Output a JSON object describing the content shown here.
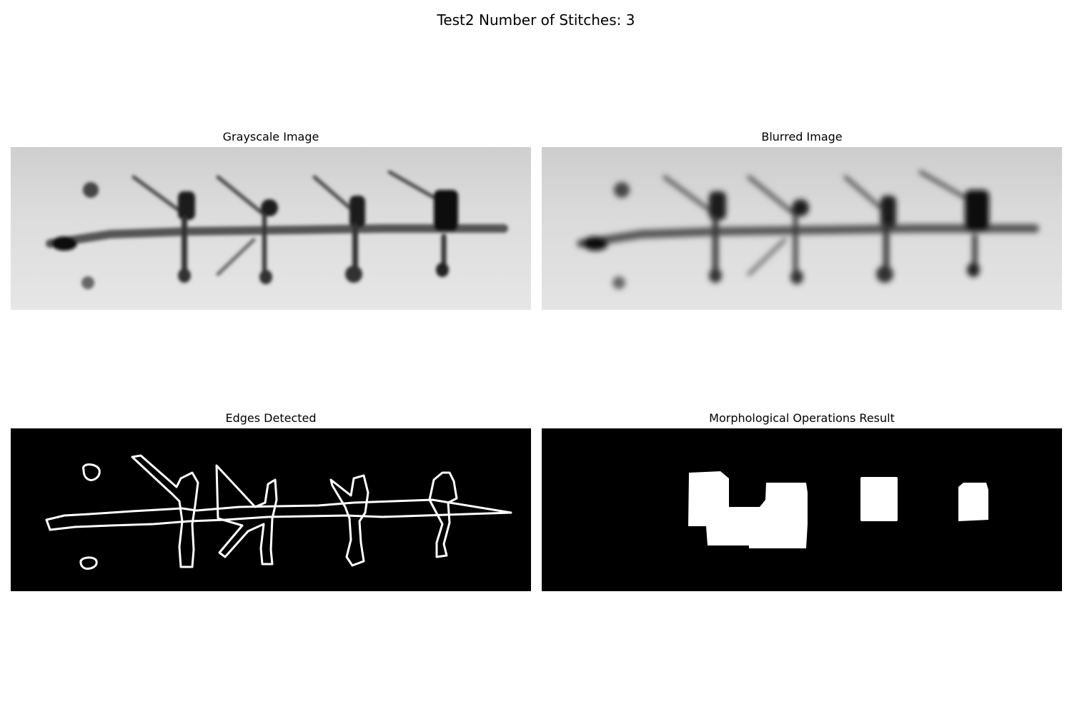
{
  "figure": {
    "suptitle": "Test2 Number of Stitches: 3",
    "panels": [
      {
        "title": "Grayscale Image"
      },
      {
        "title": "Blurred Image"
      },
      {
        "title": "Edges Detected"
      },
      {
        "title": "Morphological Operations Result"
      }
    ]
  },
  "colors": {
    "background": "#ffffff",
    "mask_background": "#000000",
    "mask_foreground": "#ffffff"
  }
}
